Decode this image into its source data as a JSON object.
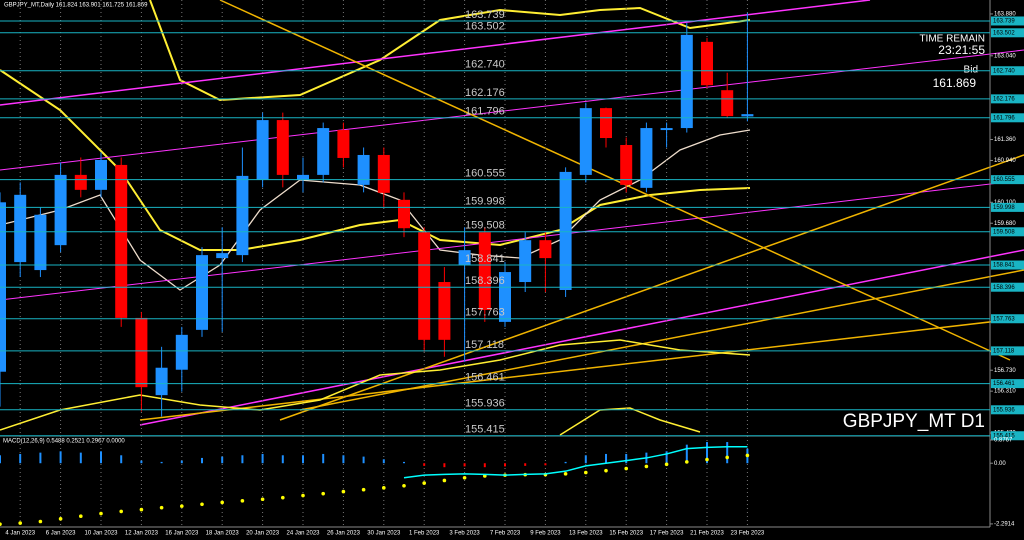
{
  "chart_data": [
    {
      "type": "candlestick",
      "info": "GBPJPY_MT,Daily 161.824 163.901 161.725 161.869",
      "time_remain_label": "TIME REMAIN",
      "time_remain": "23:21:55",
      "bid_label": "Bid",
      "bid": "161.869",
      "symbol_label": "GBPJPY_MT D1",
      "categories": [
        null,
        "4 Jan 2023",
        null,
        "6 Jan 2023",
        null,
        "10 Jan 2023",
        null,
        "12 Jan 2023",
        null,
        "16 Jan 2023",
        null,
        "18 Jan 2023",
        null,
        "20 Jan 2023",
        null,
        "24 Jan 2023",
        null,
        "26 Jan 2023",
        null,
        "30 Jan 2023",
        null,
        "1 Feb 2023",
        null,
        "3 Feb 2023",
        null,
        "7 Feb 2023",
        null,
        "9 Feb 2023",
        null,
        "13 Feb 2023",
        null,
        "15 Feb 2023",
        null,
        "17 Feb 2023",
        null,
        "21 Feb 2023",
        null,
        "23 Feb 2023"
      ],
      "open": [
        156.7,
        158.9,
        158.74,
        159.24,
        160.65,
        160.35,
        160.85,
        157.78,
        156.23,
        156.74,
        157.54,
        158.98,
        159.04,
        160.55,
        161.75,
        160.55,
        160.65,
        161.55,
        160.45,
        161.05,
        160.15,
        159.5,
        158.5,
        158.84,
        159.5,
        157.7,
        158.5,
        159.34,
        158.34,
        160.65,
        161.99,
        161.25,
        160.39,
        161.55,
        161.59,
        163.32,
        162.35,
        161.824
      ],
      "high": [
        160.3,
        160.5,
        160.0,
        160.9,
        161.0,
        161.1,
        161.0,
        157.9,
        157.2,
        157.6,
        159.2,
        159.6,
        161.2,
        161.9,
        161.9,
        161.0,
        161.7,
        161.7,
        161.2,
        161.2,
        160.3,
        159.6,
        158.8,
        159.6,
        159.6,
        158.9,
        159.5,
        159.5,
        160.8,
        162.1,
        162.0,
        161.4,
        161.7,
        161.7,
        163.7,
        163.4,
        162.7,
        163.901
      ],
      "low": [
        156.0,
        158.6,
        158.6,
        159.1,
        160.2,
        160.2,
        157.6,
        155.9,
        155.8,
        156.3,
        157.4,
        157.5,
        158.9,
        160.4,
        160.4,
        160.3,
        160.5,
        160.8,
        160.3,
        160.0,
        159.4,
        157.1,
        157.0,
        156.9,
        157.7,
        157.6,
        158.3,
        158.3,
        158.2,
        160.5,
        161.2,
        160.3,
        160.3,
        161.2,
        161.5,
        162.4,
        161.8,
        161.725
      ],
      "close": [
        160.1,
        160.25,
        159.85,
        160.65,
        160.35,
        160.95,
        157.78,
        156.39,
        156.78,
        157.44,
        159.04,
        159.08,
        160.63,
        161.75,
        160.65,
        160.65,
        161.59,
        160.99,
        161.05,
        160.29,
        159.58,
        157.34,
        157.34,
        159.14,
        157.94,
        158.7,
        159.34,
        158.98,
        160.71,
        161.99,
        161.39,
        160.45,
        161.59,
        161.59,
        163.46,
        162.45,
        161.83,
        161.869
      ],
      "up_color": "#1e90ff",
      "down_color": "#ff0000",
      "levels": [
        163.739,
        163.502,
        {
          "value": 162.74,
          "label": "162.740"
        },
        162.176,
        161.796,
        160.555,
        159.998,
        159.508,
        158.841,
        158.396,
        157.763,
        157.118,
        156.461,
        155.936,
        155.415
      ],
      "level_color": "#19b4c4",
      "ylim": [
        155.43,
        164.16
      ],
      "yticks": [
        {
          "value": 163.88,
          "label": "163.880"
        },
        {
          "value": 163.04,
          "label": "163.040"
        },
        {
          "value": 161.36,
          "label": "161.360"
        },
        {
          "value": 160.94,
          "label": "160.940"
        },
        {
          "value": 160.1,
          "label": "160.100"
        },
        {
          "value": 159.68,
          "label": "159.680"
        },
        {
          "value": 156.73,
          "label": "156.730"
        },
        {
          "value": 156.31,
          "label": "156.310"
        },
        {
          "value": 155.47,
          "label": "155.470"
        }
      ]
    },
    {
      "type": "bar",
      "title": "MACD(12,26,9) 0.5488 0.2521 0.2967 0.0000",
      "series": [
        {
          "style": "bar",
          "color": "#1e90ff",
          "values": [
            0.3,
            0.35,
            0.4,
            0.45,
            0.4,
            0.45,
            0.3,
            0.1,
            0.05,
            0.1,
            0.2,
            0.25,
            0.3,
            0.35,
            0.3,
            0.3,
            0.35,
            0.3,
            0.25,
            0.15,
            0.05,
            -0.1,
            -0.15,
            -0.12,
            -0.15,
            -0.12,
            -0.1,
            -0.08,
            0.05,
            0.3,
            0.35,
            0.35,
            0.4,
            0.45,
            0.7,
            0.8,
            0.8,
            0.5488
          ]
        },
        {
          "style": "dots",
          "color": "#ffff00",
          "values": [
            -2.3,
            -2.26,
            -2.2,
            -2.1,
            -2.0,
            -1.9,
            -1.82,
            -1.75,
            -1.68,
            -1.62,
            -1.55,
            -1.48,
            -1.42,
            -1.36,
            -1.3,
            -1.22,
            -1.15,
            -1.07,
            -1.0,
            -0.93,
            -0.85,
            -0.75,
            -0.65,
            -0.55,
            -0.48,
            -0.45,
            -0.43,
            -0.43,
            -0.4,
            -0.35,
            -0.28,
            -0.2,
            -0.12,
            -0.04,
            0.05,
            0.14,
            0.22,
            0.2967
          ]
        },
        {
          "style": "line",
          "color": "#00ffff",
          "values": [
            null,
            null,
            null,
            null,
            null,
            null,
            null,
            null,
            null,
            null,
            null,
            null,
            null,
            null,
            null,
            null,
            null,
            null,
            null,
            null,
            -0.55,
            -0.45,
            -0.42,
            -0.4,
            -0.42,
            -0.45,
            -0.42,
            -0.4,
            -0.3,
            -0.1,
            0.0,
            0.1,
            0.2,
            0.35,
            0.55,
            0.6,
            0.62,
            0.62
          ]
        }
      ],
      "ylim": [
        -2.37,
        0.99
      ],
      "yticks": [
        0.8767,
        {
          "value": 0,
          "label": "0.00"
        },
        -2.2914
      ]
    }
  ]
}
